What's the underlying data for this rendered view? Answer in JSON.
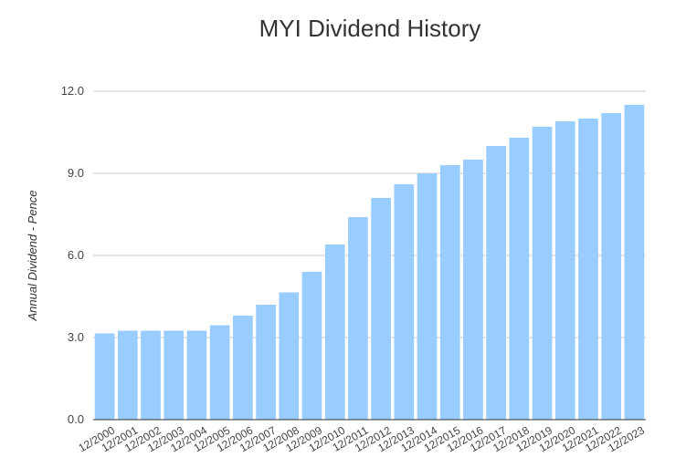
{
  "chart_data": {
    "type": "bar",
    "title": "MYI Dividend History",
    "xlabel": "",
    "ylabel": "Annual Dividend - Pence",
    "categories": [
      "12/2000",
      "12/2001",
      "12/2002",
      "12/2003",
      "12/2004",
      "12/2005",
      "12/2006",
      "12/2007",
      "12/2008",
      "12/2009",
      "12/2010",
      "12/2011",
      "12/2012",
      "12/2013",
      "12/2014",
      "12/2015",
      "12/2016",
      "12/2017",
      "12/2018",
      "12/2019",
      "12/2020",
      "12/2021",
      "12/2022",
      "12/2023"
    ],
    "values": [
      3.15,
      3.25,
      3.25,
      3.25,
      3.25,
      3.45,
      3.8,
      4.2,
      4.65,
      5.4,
      6.4,
      7.4,
      8.1,
      8.6,
      9.0,
      9.3,
      9.5,
      10.0,
      10.3,
      10.7,
      10.9,
      11.0,
      11.2,
      11.5
    ],
    "ylim": [
      0,
      12
    ],
    "yticks": [
      "0.0",
      "3.0",
      "6.0",
      "9.0",
      "12.0"
    ],
    "grid": true,
    "bar_color": "#99ccff"
  }
}
